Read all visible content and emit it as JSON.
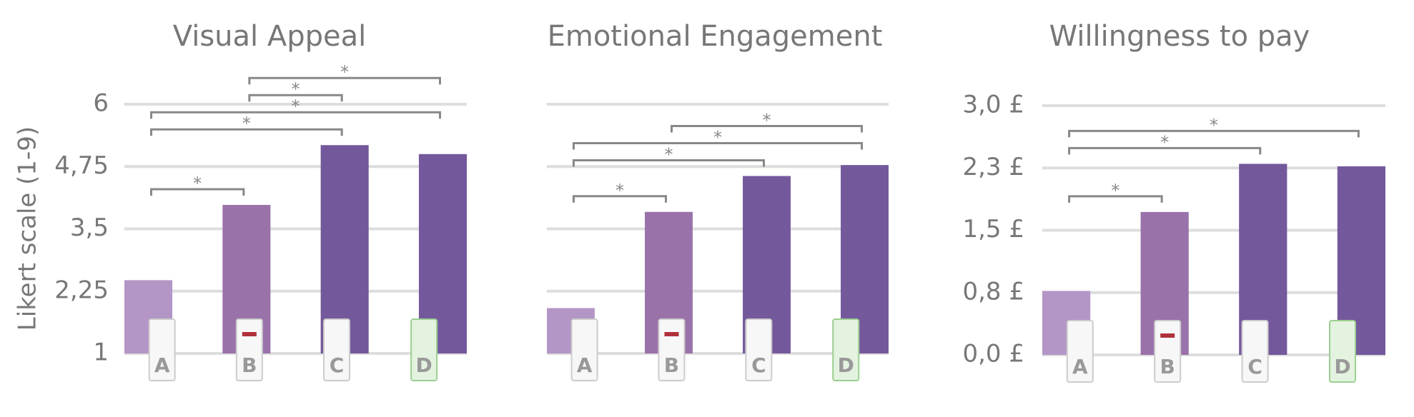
{
  "chart_data": [
    {
      "type": "bar",
      "title": "Visual Appeal",
      "y_label": "Likert scale (1-9)",
      "categories": [
        "A",
        "B",
        "C",
        "D"
      ],
      "values": [
        2.47,
        3.98,
        5.18,
        5.0
      ],
      "colors": [
        "#b396c6",
        "#9a72aa",
        "#74589c",
        "#74589c"
      ],
      "ylim": [
        1,
        6
      ],
      "yticks": [
        1,
        {
          "value": 2.25,
          "label": "2,25"
        },
        {
          "value": 3.5,
          "label": "3,5"
        },
        {
          "value": 4.75,
          "label": "4,75"
        },
        6
      ],
      "grid": true,
      "significance": [
        {
          "from": "A",
          "to": "B",
          "label": "*"
        },
        {
          "from": "A",
          "to": "C",
          "label": "*"
        },
        {
          "from": "A",
          "to": "D",
          "label": "*"
        },
        {
          "from": "B",
          "to": "C",
          "label": "*"
        },
        {
          "from": "B",
          "to": "D",
          "label": "*"
        }
      ]
    },
    {
      "type": "bar",
      "title": "Emotional Engagement",
      "categories": [
        "A",
        "B",
        "C",
        "D"
      ],
      "values": [
        1.91,
        3.84,
        4.56,
        4.78
      ],
      "colors": [
        "#b396c6",
        "#9a72aa",
        "#74589c",
        "#74589c"
      ],
      "ylim": [
        1,
        6
      ],
      "yticks": [
        1,
        2.25,
        3.5,
        4.75,
        6
      ],
      "grid": true,
      "significance": [
        {
          "from": "A",
          "to": "B",
          "label": "*"
        },
        {
          "from": "A",
          "to": "C",
          "label": "*"
        },
        {
          "from": "A",
          "to": "D",
          "label": "*"
        },
        {
          "from": "B",
          "to": "D",
          "label": "*"
        }
      ]
    },
    {
      "type": "bar",
      "title": "Willingness to pay",
      "categories": [
        "A",
        "B",
        "C",
        "D"
      ],
      "values": [
        0.77,
        1.72,
        2.3,
        2.27
      ],
      "colors": [
        "#b396c6",
        "#9a72aa",
        "#74589c",
        "#74589c"
      ],
      "ylim": [
        0,
        3
      ],
      "yticks": [
        {
          "value": 0,
          "label": "0,0 £"
        },
        {
          "value": 0.75,
          "label": "0,8 £"
        },
        {
          "value": 1.5,
          "label": "1,5 £"
        },
        {
          "value": 2.25,
          "label": "2,3 £"
        },
        {
          "value": 3,
          "label": "3,0 £"
        }
      ],
      "grid": true,
      "significance": [
        {
          "from": "A",
          "to": "B",
          "label": "*"
        },
        {
          "from": "A",
          "to": "C",
          "label": "*"
        },
        {
          "from": "A",
          "to": "D",
          "label": "*"
        }
      ]
    }
  ]
}
